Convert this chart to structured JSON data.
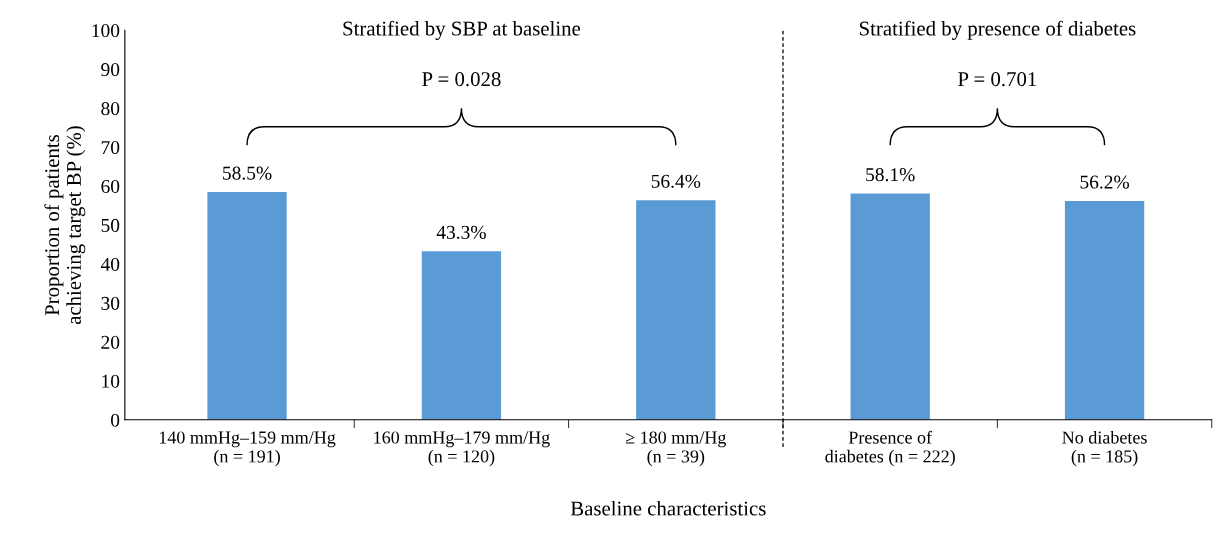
{
  "chart_data": {
    "type": "bar",
    "categories": [
      "140 mmHg–159 mm/Hg\n(n = 191)",
      "160 mmHg–179 mm/Hg\n(n = 120)",
      "≥ 180 mm/Hg\n(n = 39)",
      "Presence of\ndiabetes (n = 222)",
      "No diabetes\n(n = 185)"
    ],
    "values": [
      58.5,
      43.3,
      56.4,
      58.1,
      56.2
    ],
    "value_labels": [
      "58.5%",
      "43.3%",
      "56.4%",
      "58.1%",
      "56.2%"
    ],
    "color": "#5b9bd5",
    "xlabel": "Baseline characteristics",
    "ylabel": "Proportion of patients\nachieving target BP (%)",
    "ylim": [
      0,
      100
    ],
    "yticks": [
      0,
      10,
      20,
      30,
      40,
      50,
      60,
      70,
      80,
      90,
      100
    ],
    "annotations": [
      "Stratified by SBP at baseline",
      "Stratified by presence of diabetes",
      "P = 0.028",
      "P = 0.701"
    ],
    "grid": false
  }
}
